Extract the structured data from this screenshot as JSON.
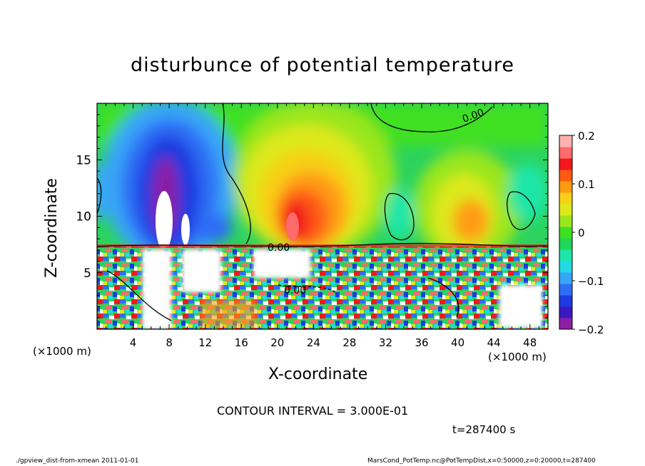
{
  "chart_data": {
    "type": "heatmap",
    "title": "disturbunce of potential temperature",
    "xlabel": "X-coordinate",
    "ylabel": "Z-coordinate",
    "x_unit_label": "(×1000 m)",
    "xlim": [
      0,
      50
    ],
    "ylim": [
      0,
      20
    ],
    "x_ticks": [
      4,
      8,
      12,
      16,
      20,
      24,
      28,
      32,
      36,
      40,
      44,
      48
    ],
    "y_ticks": [
      5,
      10,
      15
    ],
    "colorbar": {
      "range": [
        -0.2,
        0.2
      ],
      "ticks": [
        "0.2",
        "0.1",
        "0",
        "−0.1",
        "−0.2"
      ],
      "colors": [
        "#8c1fa3",
        "#3a1ac0",
        "#1d3be0",
        "#2f6df5",
        "#38a6f7",
        "#23d9e6",
        "#1fe6a8",
        "#22d65a",
        "#3fe020",
        "#9ae61c",
        "#dde81a",
        "#f7d017",
        "#ff9b12",
        "#ff5a12",
        "#f2181e",
        "#ff6a6a",
        "#ffb0b0"
      ]
    },
    "contour_labels": [
      "0.00",
      "0.00",
      "0.00"
    ],
    "contour_interval_text": "CONTOUR INTERVAL = 3.000E-01",
    "time_text": "t=287400 s"
  },
  "footer": {
    "left": "./gpview_dist-from-xmean  2011-01-01",
    "right": "MarsCond_PotTemp.nc@PotTempDist,x=0:50000,z=0:20000,t=287400"
  }
}
